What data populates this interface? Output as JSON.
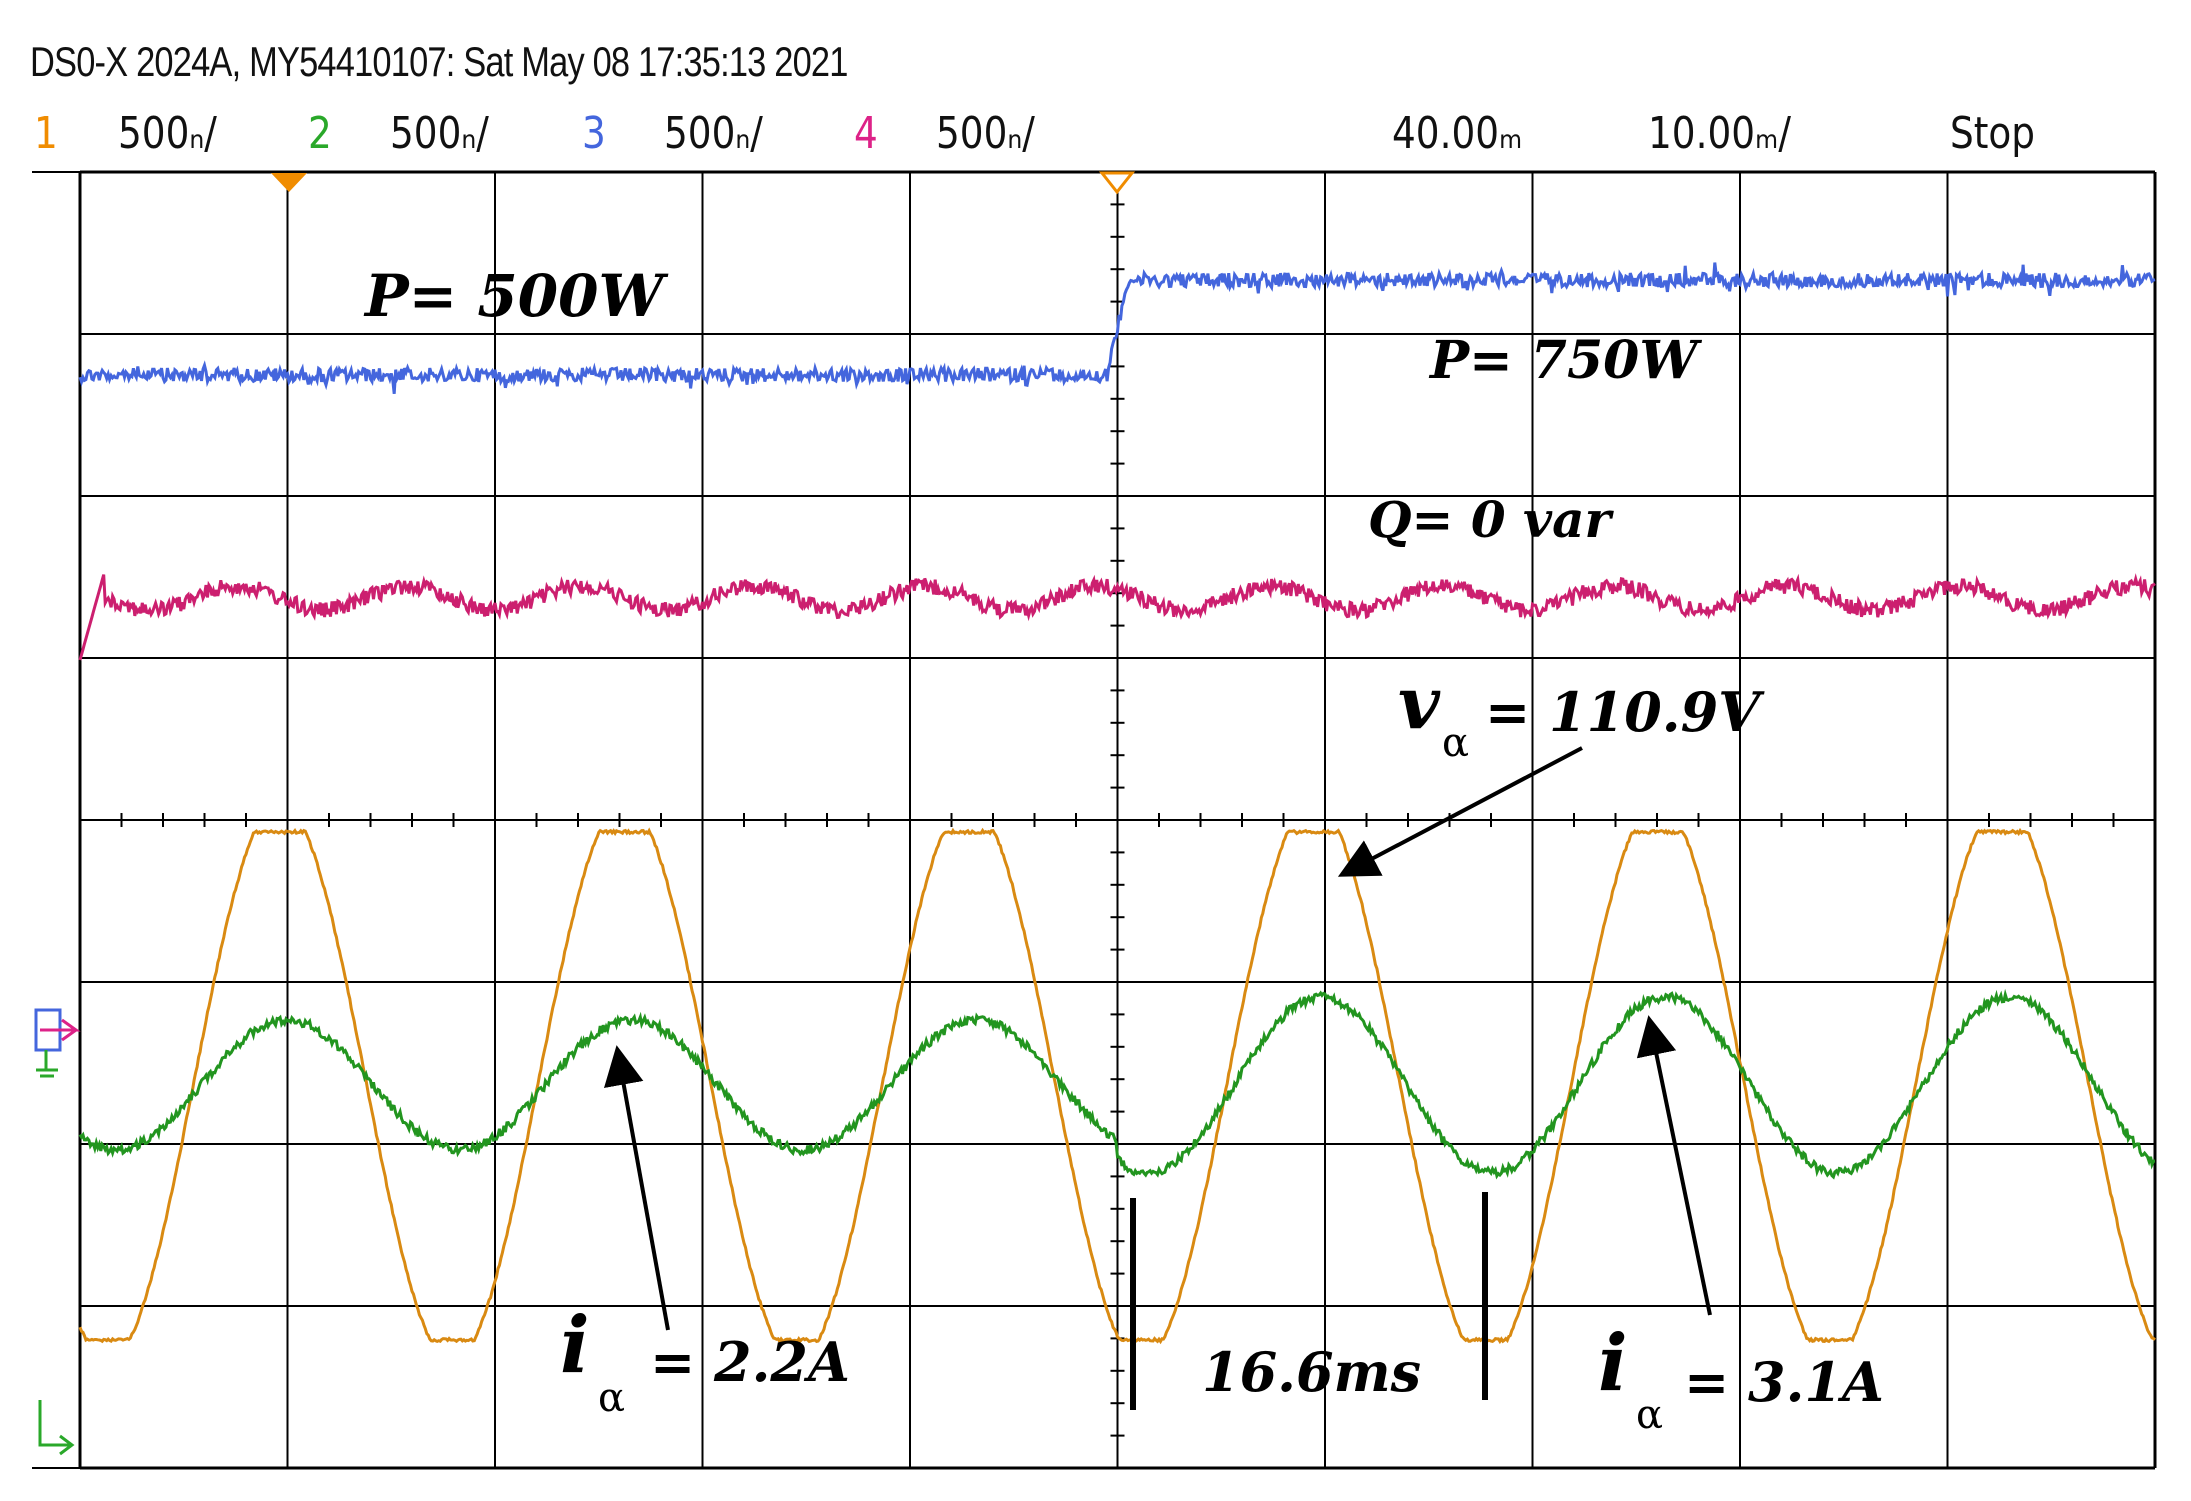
{
  "header": {
    "title": "DS0-X 2024A, MY54410107: Sat May 08 17:35:13 2021",
    "channels": [
      {
        "num": "1",
        "scale": "500ₙ/",
        "color": "#f08c00"
      },
      {
        "num": "2",
        "scale": "500ₙ/",
        "color": "#2aa82a"
      },
      {
        "num": "3",
        "scale": "500ₙ/",
        "color": "#4466dd"
      },
      {
        "num": "4",
        "scale": "500ₙ/",
        "color": "#dd2288"
      }
    ],
    "time_delay": "40.00ₘ",
    "time_scale": "10.00ₘ/",
    "status": "Stop"
  },
  "annotations": {
    "p1": "P=  500W",
    "p2": "P=  750W",
    "q": "Q=  0 var",
    "v_symbol": "v",
    "v_sub": "α",
    "v_value": "=  110.9V",
    "i1_symbol": "i",
    "i1_sub": "α",
    "i1_value": "=  2.2A",
    "period": "16.6ms",
    "i2_symbol": "i",
    "i2_sub": "α",
    "i2_value": "=  3.1A"
  },
  "chart_data": {
    "type": "line",
    "title": "",
    "xlabel": "",
    "ylabel": "",
    "time_per_div_ms": 10,
    "x_divisions": 10,
    "y_divisions": 8,
    "step_time_ms": 50,
    "grid": true,
    "series": [
      {
        "name": "P",
        "channel": 3,
        "color": "#4466dd",
        "values_before_step": 500,
        "values_after_step": 750,
        "unit": "W"
      },
      {
        "name": "Q",
        "channel": 4,
        "color": "#cc1f6f",
        "value": 0,
        "unit": "var"
      },
      {
        "name": "vα",
        "channel": 1,
        "color": "#d98a12",
        "amplitude": 110.9,
        "unit": "V",
        "period_ms": 16.6
      },
      {
        "name": "iα",
        "channel": 2,
        "color": "#22951f",
        "amplitude_before_step": 2.2,
        "amplitude_after_step": 3.1,
        "unit": "A",
        "period_ms": 16.6
      }
    ]
  }
}
